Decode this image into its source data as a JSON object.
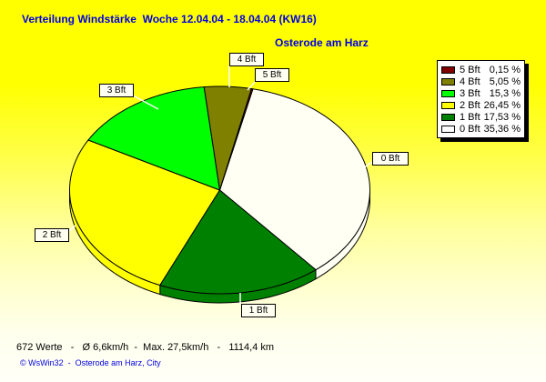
{
  "chart_data": {
    "type": "pie",
    "title": "Verteilung Windstärke  Woche 12.04.04 - 18.04.04 (KW16)",
    "subtitle": "Osterode am Harz",
    "effect_3d": true,
    "start_angle_deg": 96,
    "direction": "clockwise",
    "legend_position": "top-right",
    "slices": [
      {
        "label": "4 Bft",
        "value_pct": 5.05,
        "value_text": "5,05 %",
        "color": "#808000"
      },
      {
        "label": "5 Bft",
        "value_pct": 0.15,
        "value_text": "0,15 %",
        "color": "#800000"
      },
      {
        "label": "0 Bft",
        "value_pct": 35.36,
        "value_text": "35,36 %",
        "color": "#FFFFF4"
      },
      {
        "label": "1 Bft",
        "value_pct": 17.53,
        "value_text": "17,53 %",
        "color": "#008000"
      },
      {
        "label": "2 Bft",
        "value_pct": 26.45,
        "value_text": "26,45 %",
        "color": "#FFFF00"
      },
      {
        "label": "3 Bft",
        "value_pct": 15.3,
        "value_text": "15,3 %",
        "color": "#00FF00"
      }
    ],
    "legend": [
      {
        "label": "5 Bft",
        "value_text": "0,15 %",
        "color": "#800000"
      },
      {
        "label": "4 Bft",
        "value_text": "5,05 %",
        "color": "#808000"
      },
      {
        "label": "3 Bft",
        "value_text": "15,3 %",
        "color": "#00FF00"
      },
      {
        "label": "2 Bft",
        "value_text": "26,45 %",
        "color": "#FFFF00"
      },
      {
        "label": "1 Bft",
        "value_text": "17,53 %",
        "color": "#008000"
      },
      {
        "label": "0 Bft",
        "value_text": "35,36 %",
        "color": "#FFFFFF"
      }
    ]
  },
  "footer": {
    "stats": "672 Werte   -   Ø 6,6km/h  -  Max. 27,5km/h   -   1114,4 km",
    "copyright": "© WsWin32  -  Osterode am Harz, City"
  },
  "colors": {
    "background_top": "#FFFF00",
    "background_bottom": "#FFFFF8",
    "title_text": "#0000E0",
    "outline": "#000000",
    "label_box_bg": "#FFFFF2",
    "leader_line": "#FFFFFF",
    "legend_shadow": "#000000"
  }
}
